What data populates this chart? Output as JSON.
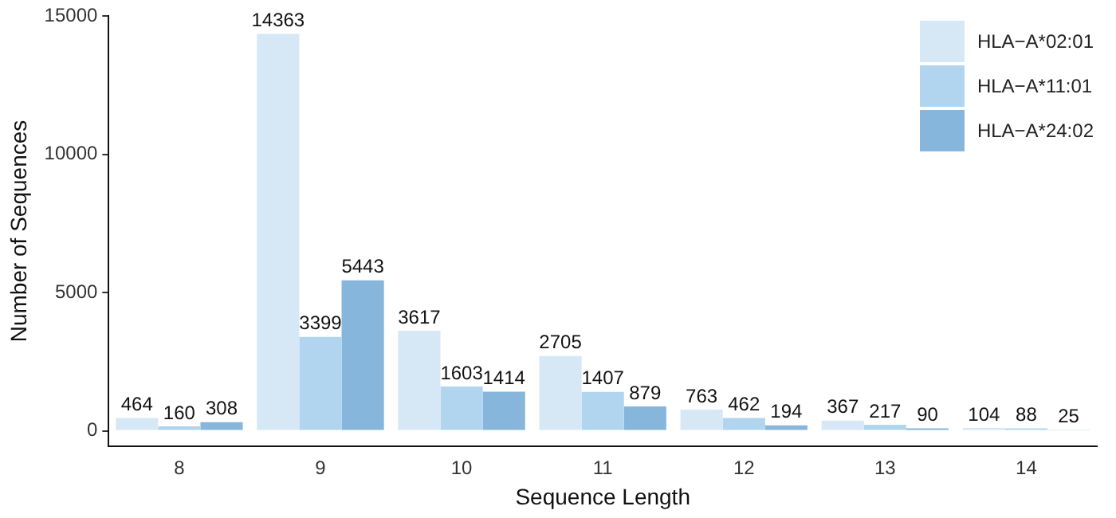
{
  "chart_data": {
    "type": "bar",
    "xlabel": "Sequence Length",
    "ylabel": "Number of Sequences",
    "categories": [
      "8",
      "9",
      "10",
      "11",
      "12",
      "13",
      "14"
    ],
    "series": [
      {
        "name": "HLA−A*02:01",
        "color": "#d6e8f6",
        "values": [
          464,
          14363,
          3617,
          2705,
          763,
          367,
          104
        ]
      },
      {
        "name": "HLA−A*11:01",
        "color": "#b1d5ef",
        "values": [
          160,
          3399,
          1603,
          1407,
          462,
          217,
          88
        ]
      },
      {
        "name": "HLA−A*24:02",
        "color": "#86b6db",
        "values": [
          308,
          5443,
          1414,
          879,
          194,
          90,
          25
        ]
      }
    ],
    "ylim": [
      -550,
      15000
    ],
    "yticks": [
      0,
      5000,
      10000,
      15000
    ],
    "grid": false,
    "legend": "top right",
    "data_labels": true
  }
}
